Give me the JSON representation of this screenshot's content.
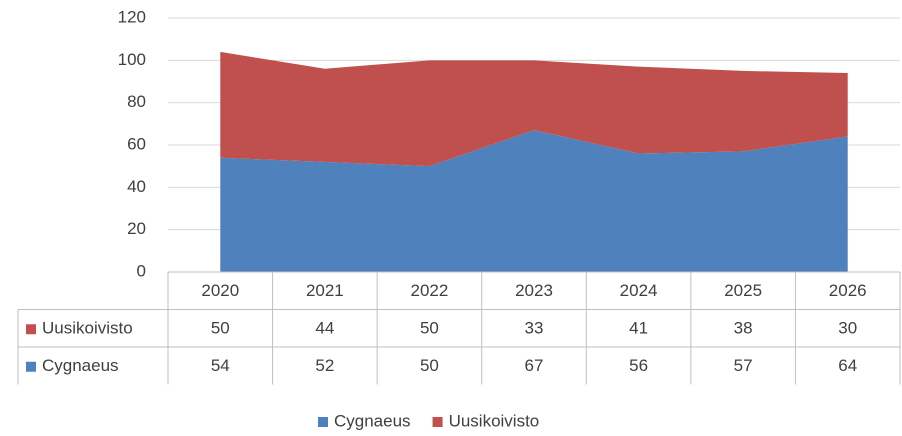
{
  "chart_data": {
    "type": "area",
    "stacked": true,
    "categories": [
      "2020",
      "2021",
      "2022",
      "2023",
      "2024",
      "2025",
      "2026"
    ],
    "series": [
      {
        "name": "Cygnaeus",
        "color": "#4f81bd",
        "values": [
          54,
          52,
          50,
          67,
          56,
          57,
          64
        ]
      },
      {
        "name": "Uusikoivisto",
        "color": "#c0504d",
        "values": [
          50,
          44,
          50,
          33,
          41,
          38,
          30
        ]
      }
    ],
    "ylim": [
      0,
      120
    ],
    "yticks": [
      0,
      20,
      40,
      60,
      80,
      100,
      120
    ],
    "grid": true,
    "data_table": true,
    "legend": "bottom"
  }
}
